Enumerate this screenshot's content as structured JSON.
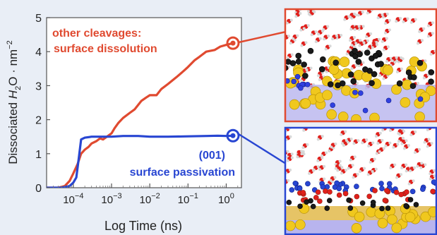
{
  "chart_data": {
    "type": "line",
    "title": "",
    "xlabel": "Log Time (ns)",
    "ylabel_prefix": "Dissociated ",
    "ylabel_h2o": "H",
    "ylabel_sub2": "2",
    "ylabel_o": "O",
    "ylabel_rest": " · nm",
    "ylabel_sup": "−2",
    "x_scale": "log",
    "xlim": [
      2e-05,
      2.5
    ],
    "ylim": [
      0,
      5
    ],
    "x_ticks": [
      {
        "value": 0.0001,
        "base": "10",
        "exp": "−4"
      },
      {
        "value": 0.001,
        "base": "10",
        "exp": "−3"
      },
      {
        "value": 0.01,
        "base": "10",
        "exp": "−2"
      },
      {
        "value": 0.1,
        "base": "10",
        "exp": "−1"
      },
      {
        "value": 1,
        "base": "10",
        "exp": "0"
      }
    ],
    "y_ticks": [
      0,
      1,
      2,
      3,
      4,
      5
    ],
    "grid": false,
    "series": [
      {
        "name": "other cleavages: surface dissolution",
        "color": "#e04a30",
        "x": [
          2e-05,
          4e-05,
          6e-05,
          8e-05,
          0.0001,
          0.00013,
          0.00016,
          0.0002,
          0.00025,
          0.0003,
          0.0004,
          0.0005,
          0.0006,
          0.0008,
          0.001,
          0.0012,
          0.0015,
          0.002,
          0.003,
          0.004,
          0.006,
          0.008,
          0.01,
          0.015,
          0.02,
          0.03,
          0.05,
          0.08,
          0.1,
          0.15,
          0.2,
          0.3,
          0.5,
          0.7,
          1.0,
          1.5
        ],
        "y": [
          0,
          0,
          0.05,
          0.2,
          0.42,
          0.7,
          1.0,
          1.12,
          1.2,
          1.3,
          1.37,
          1.45,
          1.42,
          1.52,
          1.6,
          1.75,
          1.9,
          2.05,
          2.2,
          2.3,
          2.55,
          2.65,
          2.72,
          2.72,
          2.9,
          3.05,
          3.25,
          3.45,
          3.55,
          3.75,
          3.85,
          4.0,
          4.05,
          4.15,
          4.2,
          4.25
        ]
      },
      {
        "name": "(001) surface passivation",
        "color": "#2846d2",
        "x": [
          2e-05,
          5e-05,
          8e-05,
          0.0001,
          0.00012,
          0.00014,
          0.00016,
          0.0002,
          0.0003,
          0.0005,
          0.001,
          0.002,
          0.005,
          0.01,
          0.03,
          0.1,
          0.3,
          0.6,
          1.0,
          1.5
        ],
        "y": [
          0,
          0,
          0.05,
          0.15,
          0.3,
          0.9,
          1.42,
          1.47,
          1.5,
          1.5,
          1.5,
          1.52,
          1.52,
          1.5,
          1.5,
          1.51,
          1.52,
          1.53,
          1.52,
          1.53
        ]
      }
    ]
  },
  "annotations": {
    "red_line1": "other cleavages:",
    "red_line2": "surface dissolution",
    "blue_line1": "(001)",
    "blue_line2": "surface passivation"
  },
  "colors": {
    "red": "#e04a30",
    "blue": "#2846d2",
    "background": "#e9eef6"
  },
  "panels": [
    {
      "name": "dissolution-snapshot",
      "frame_color": "#e04a30"
    },
    {
      "name": "passivation-snapshot",
      "frame_color": "#2846d2"
    }
  ]
}
